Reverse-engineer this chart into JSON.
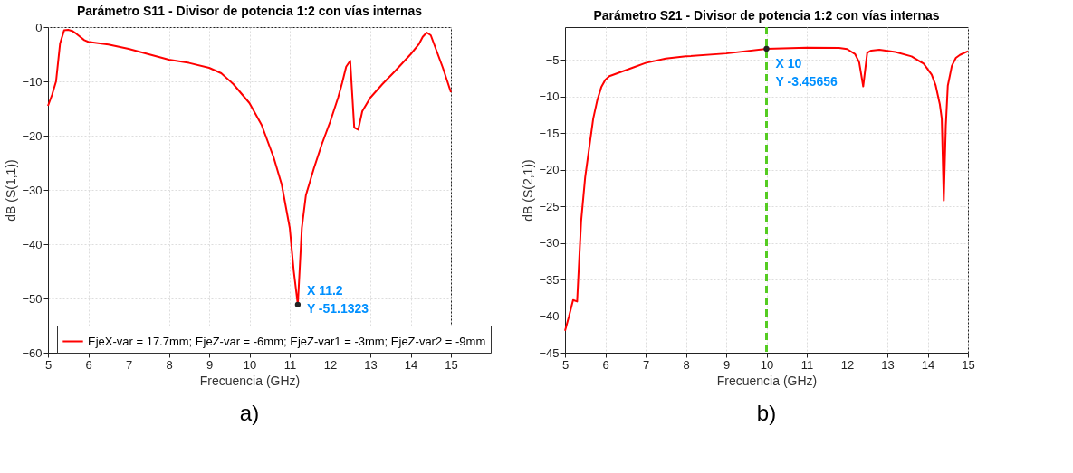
{
  "chart_data": [
    {
      "type": "line",
      "title": "Parámetro S11 - Divisor de potencia 1:2 con vías internas",
      "xlabel": "Frecuencia (GHz)",
      "ylabel": "dB (S(1,1))",
      "x": [
        5,
        5.1,
        5.2,
        5.3,
        5.4,
        5.5,
        5.6,
        5.7,
        5.8,
        5.9,
        6.0,
        6.2,
        6.5,
        7,
        7.5,
        8,
        8.5,
        9,
        9.3,
        9.6,
        10,
        10.3,
        10.6,
        10.8,
        11.0,
        11.1,
        11.2,
        11.3,
        11.4,
        11.6,
        11.8,
        12.0,
        12.2,
        12.3,
        12.4,
        12.5,
        12.6,
        12.7,
        12.8,
        13,
        13.3,
        13.6,
        14,
        14.2,
        14.3,
        14.4,
        14.5,
        14.6,
        14.8,
        15
      ],
      "series": [
        {
          "name": "EjeX-var = 17.7mm; EjeZ-var = -6mm; EjeZ-var1 = -3mm; EjeZ-var2 = -9mm",
          "color": "#ff0000",
          "values": [
            -14.5,
            -12.5,
            -10,
            -3,
            -0.6,
            -0.5,
            -0.7,
            -1.2,
            -1.8,
            -2.4,
            -2.7,
            -2.9,
            -3.2,
            -4.0,
            -5.0,
            -6.0,
            -6.6,
            -7.5,
            -8.5,
            -10.5,
            -14,
            -18,
            -24,
            -29,
            -37,
            -45,
            -51.1323,
            -37,
            -31,
            -26,
            -21.5,
            -17.5,
            -13,
            -10.3,
            -7.3,
            -6.2,
            -18.5,
            -18.9,
            -15.5,
            -13,
            -10.5,
            -8.2,
            -5,
            -3.2,
            -1.8,
            -1.0,
            -1.5,
            -3.5,
            -7.5,
            -12
          ]
        }
      ],
      "xlim": [
        5,
        15
      ],
      "xticks": [
        5,
        6,
        7,
        8,
        9,
        10,
        11,
        12,
        13,
        14,
        15
      ],
      "ylim": [
        -60,
        0
      ],
      "yticks": [
        -60,
        -50,
        -40,
        -30,
        -20,
        -10,
        0
      ],
      "grid": true,
      "legend": "bottom",
      "line_style": "solid",
      "marker": "none",
      "annotations": [
        {
          "text": "X 11.2\nY -51.1323",
          "x": 11.2,
          "y": -51.1323
        },
        "a)"
      ]
    },
    {
      "type": "line",
      "title": "Parámetro S21 - Divisor de potencia 1:2 con vías internas",
      "xlabel": "Frecuencia (GHz)",
      "ylabel": "dB (S(2,1))",
      "x": [
        5,
        5.1,
        5.2,
        5.3,
        5.4,
        5.5,
        5.6,
        5.7,
        5.8,
        5.9,
        6.0,
        6.1,
        6.3,
        6.7,
        7,
        7.5,
        8,
        9,
        10,
        11,
        11.8,
        12.0,
        12.2,
        12.3,
        12.4,
        12.5,
        12.6,
        12.8,
        13.2,
        13.6,
        13.9,
        14.1,
        14.2,
        14.3,
        14.35,
        14.4,
        14.45,
        14.5,
        14.6,
        14.7,
        14.8,
        15
      ],
      "series": [
        {
          "name": "EjeX-var = 17.7mm; EjeZ-var = -6mm; EjeZ-var1 = -3mm; EjeZ-var2 = -9mm",
          "color": "#ff0000",
          "values": [
            -42,
            -40,
            -37.8,
            -38,
            -27,
            -21,
            -17,
            -13,
            -10.5,
            -8.7,
            -7.7,
            -7.2,
            -6.8,
            -6.0,
            -5.4,
            -4.8,
            -4.5,
            -4.1,
            -3.45656,
            -3.3,
            -3.35,
            -3.5,
            -4.2,
            -5.3,
            -8.6,
            -4.0,
            -3.7,
            -3.6,
            -3.9,
            -4.5,
            -5.5,
            -7.0,
            -8.5,
            -11,
            -13,
            -24.2,
            -14,
            -8.5,
            -5.8,
            -4.7,
            -4.3,
            -3.8
          ]
        }
      ],
      "xlim": [
        5,
        15
      ],
      "xticks": [
        5,
        6,
        7,
        8,
        9,
        10,
        11,
        12,
        13,
        14,
        15
      ],
      "ylim": [
        -45,
        -0.5
      ],
      "yticks": [
        -45,
        -40,
        -35,
        -30,
        -25,
        -20,
        -15,
        -10,
        -5
      ],
      "grid": true,
      "legend": "bottom",
      "line_style": "solid",
      "marker": "none",
      "ref_lines": [
        {
          "axis": "x",
          "value": 10,
          "color": "#55cc22",
          "line_style": "dashed"
        }
      ],
      "annotations": [
        {
          "text": "X 10\nY -3.45656",
          "x": 10,
          "y": -3.45656
        },
        "b)"
      ]
    }
  ]
}
